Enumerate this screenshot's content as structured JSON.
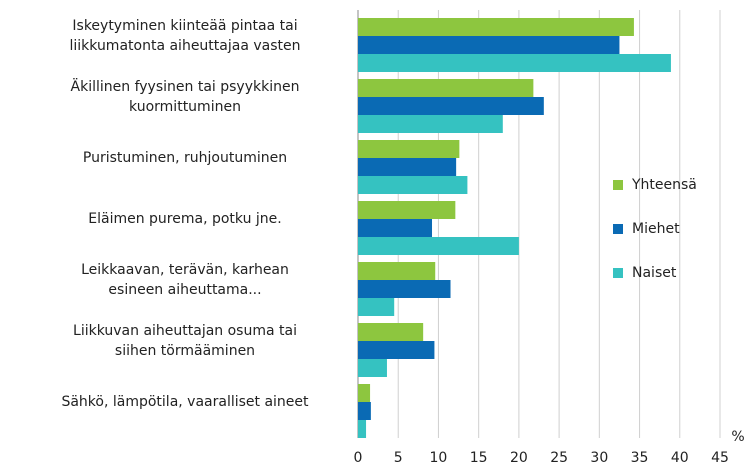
{
  "chart_data": {
    "type": "bar",
    "orientation": "horizontal",
    "categories": [
      [
        "Iskeytyminen kiinteää pintaa tai",
        "liikkumatonta aiheuttajaa vasten"
      ],
      [
        "Äkillinen fyysinen tai psyykkinen",
        "kuormittuminen"
      ],
      [
        "Puristuminen, ruhjoutuminen"
      ],
      [
        "Eläimen purema, potku jne."
      ],
      [
        "Leikkaavan, terävän, karhean",
        "esineen aiheuttama..."
      ],
      [
        "Liikkuvan aiheuttajan osuma tai",
        "siihen törmääminen"
      ],
      [
        "Sähkö, lämpötila, vaaralliset aineet"
      ]
    ],
    "series": [
      {
        "name": "Yhteensä",
        "color": "#8dc63f",
        "values": [
          34.3,
          21.8,
          12.6,
          12.1,
          9.6,
          8.1,
          1.5
        ]
      },
      {
        "name": "Miehet",
        "color": "#0a6ab4",
        "values": [
          32.5,
          23.1,
          12.2,
          9.2,
          11.5,
          9.5,
          1.6
        ]
      },
      {
        "name": "Naiset",
        "color": "#35c2c1",
        "values": [
          38.9,
          18.0,
          13.6,
          20.0,
          4.5,
          3.6,
          1.0
        ]
      }
    ],
    "x_label": "%",
    "xlim": [
      0,
      45
    ],
    "xticks": [
      0,
      5,
      10,
      15,
      20,
      25,
      30,
      35,
      40,
      45
    ],
    "grid": true,
    "legend": "right"
  }
}
